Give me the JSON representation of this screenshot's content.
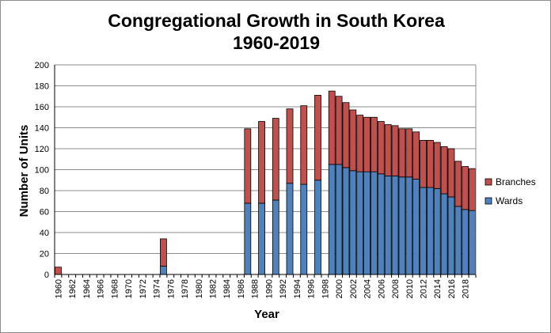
{
  "chart_data": {
    "type": "bar",
    "stacked": true,
    "title": "Congregational Growth in South Korea",
    "subtitle": "1960-2019",
    "xlabel": "Year",
    "ylabel": "Number of Units",
    "ylim": [
      0,
      200
    ],
    "yticks": [
      0,
      20,
      40,
      60,
      80,
      100,
      120,
      140,
      160,
      180,
      200
    ],
    "grid": true,
    "legend_position": "right",
    "categories": [
      1960,
      1961,
      1962,
      1963,
      1964,
      1965,
      1966,
      1967,
      1968,
      1969,
      1970,
      1971,
      1972,
      1973,
      1974,
      1975,
      1976,
      1977,
      1978,
      1979,
      1980,
      1981,
      1982,
      1983,
      1984,
      1985,
      1986,
      1987,
      1988,
      1989,
      1990,
      1991,
      1992,
      1993,
      1994,
      1995,
      1996,
      1997,
      1998,
      1999,
      2000,
      2001,
      2002,
      2003,
      2004,
      2005,
      2006,
      2007,
      2008,
      2009,
      2010,
      2011,
      2012,
      2013,
      2014,
      2015,
      2016,
      2017,
      2018,
      2019
    ],
    "tick_labels": [
      "1960",
      "1962",
      "1964",
      "1966",
      "1968",
      "1970",
      "1972",
      "1974",
      "1976",
      "1978",
      "1980",
      "1982",
      "1984",
      "1986",
      "1988",
      "1990",
      "1992",
      "1994",
      "1996",
      "1998",
      "2000",
      "2002",
      "2004",
      "2006",
      "2008",
      "2010",
      "2012",
      "2014",
      "2016",
      "2018"
    ],
    "series": [
      {
        "name": "Wards",
        "color": "#4f81bd",
        "values": [
          0,
          null,
          null,
          null,
          null,
          null,
          null,
          null,
          null,
          null,
          null,
          null,
          null,
          null,
          null,
          8,
          null,
          null,
          null,
          null,
          null,
          null,
          null,
          null,
          null,
          null,
          null,
          68,
          null,
          68,
          null,
          71,
          null,
          87,
          null,
          86,
          null,
          90,
          null,
          105,
          105,
          102,
          99,
          98,
          98,
          98,
          96,
          94,
          94,
          93,
          93,
          91,
          83,
          83,
          82,
          77,
          74,
          65,
          62,
          61
        ]
      },
      {
        "name": "Branches",
        "color": "#c0504d",
        "values": [
          7,
          null,
          null,
          null,
          null,
          null,
          null,
          null,
          null,
          null,
          null,
          null,
          null,
          null,
          null,
          26,
          null,
          null,
          null,
          null,
          null,
          null,
          null,
          null,
          null,
          null,
          null,
          71,
          null,
          78,
          null,
          78,
          null,
          71,
          null,
          75,
          null,
          81,
          null,
          70,
          65,
          62,
          58,
          54,
          52,
          52,
          50,
          49,
          48,
          46,
          46,
          45,
          45,
          45,
          44,
          45,
          46,
          43,
          41,
          40
        ]
      }
    ],
    "legend": [
      "Branches",
      "Wards"
    ]
  }
}
